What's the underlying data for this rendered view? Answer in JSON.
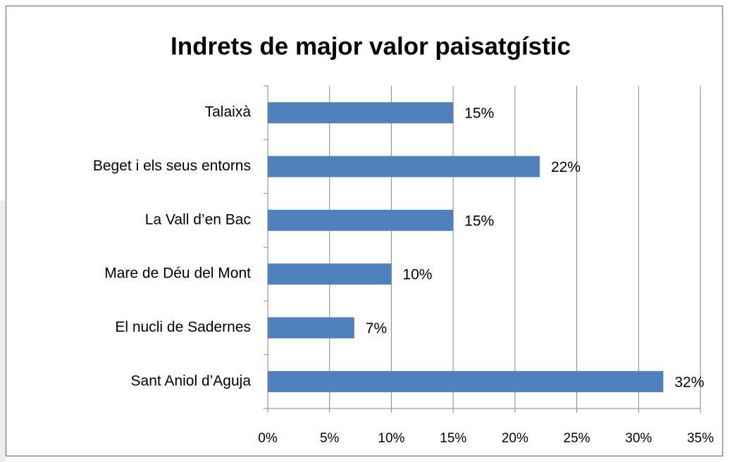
{
  "chart_data": {
    "type": "bar",
    "orientation": "horizontal",
    "title": "Indrets de major valor paisatgístic",
    "categories": [
      "Talaixà",
      "Beget i els seus entorns",
      "La Vall d’en Bac",
      "Mare de Déu del Mont",
      "El nucli de Sadernes",
      "Sant Aniol d’Aguja"
    ],
    "values": [
      15,
      22,
      15,
      10,
      7,
      32
    ],
    "value_labels": [
      "15%",
      "22%",
      "15%",
      "10%",
      "7%",
      "32%"
    ],
    "color": "#4f81bd",
    "xlim": [
      0,
      35
    ],
    "xticks": [
      {
        "value": 0,
        "label": "0%"
      },
      {
        "value": 5,
        "label": "5%"
      },
      {
        "value": 10,
        "label": "10%"
      },
      {
        "value": 15,
        "label": "15%"
      },
      {
        "value": 20,
        "label": "20%"
      },
      {
        "value": 25,
        "label": "25%"
      },
      {
        "value": 30,
        "label": "30%"
      },
      {
        "value": 35,
        "label": "35%"
      }
    ],
    "grid": true
  }
}
